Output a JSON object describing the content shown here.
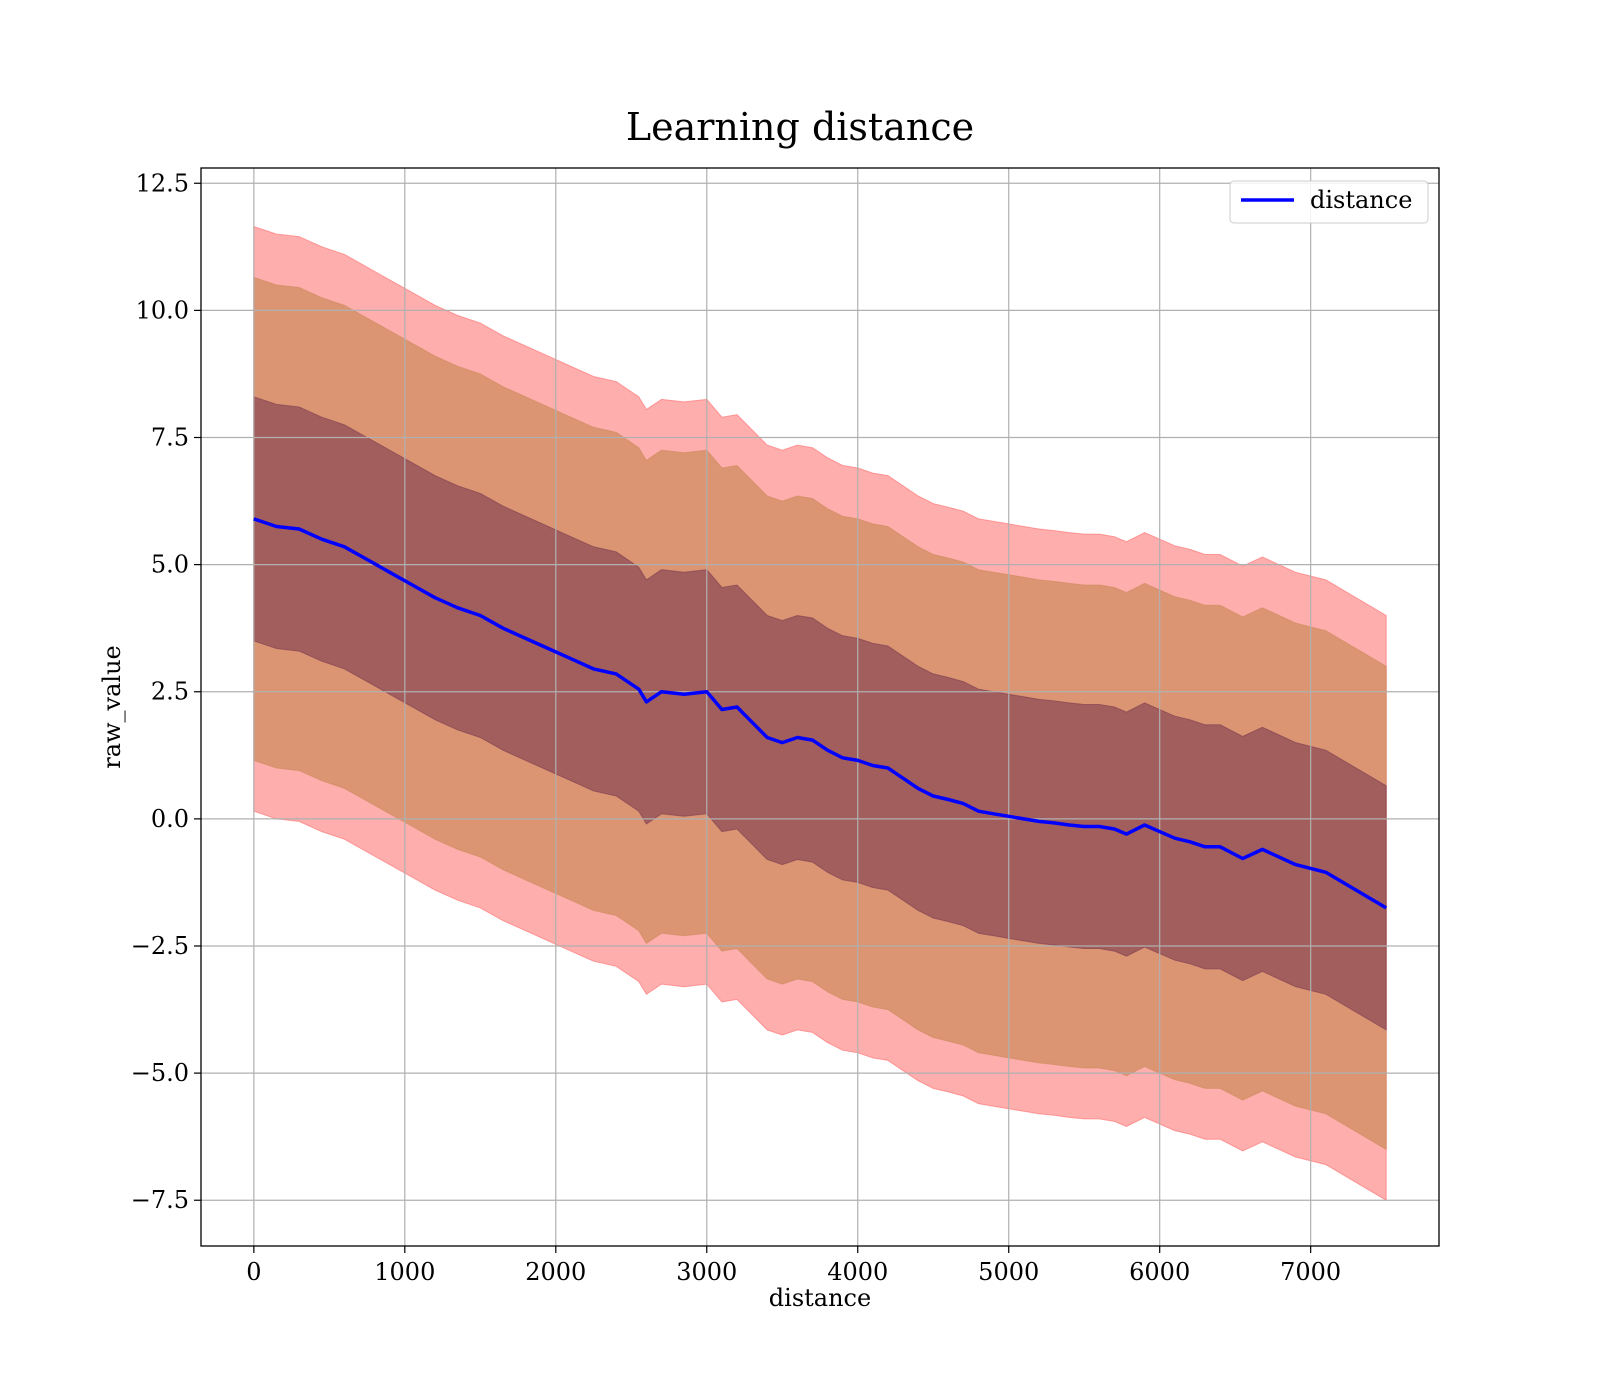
{
  "chart_data": {
    "type": "line",
    "title": "Learning distance",
    "xlabel": "distance",
    "ylabel": "raw_value",
    "xlim": [
      -350,
      7850
    ],
    "ylim": [
      -8.4,
      12.8
    ],
    "grid": true,
    "legend": {
      "placement": "top-right",
      "entries": [
        {
          "label": "distance",
          "color": "#0000ff"
        }
      ]
    },
    "x_ticks": [
      0,
      1000,
      2000,
      3000,
      4000,
      5000,
      6000,
      7000
    ],
    "x_tick_labels": [
      "0",
      "1000",
      "2000",
      "3000",
      "4000",
      "5000",
      "6000",
      "7000"
    ],
    "y_ticks": [
      12.5,
      10.0,
      7.5,
      5.0,
      2.5,
      0.0,
      -2.5,
      -5.0,
      -7.5
    ],
    "y_tick_labels": [
      "12.5",
      "10.0",
      "7.5",
      "5.0",
      "2.5",
      "0.0",
      "−2.5",
      "−5.0",
      "−7.5"
    ],
    "series": [
      {
        "name": "distance",
        "color": "#0000ff",
        "x": [
          0,
          150,
          300,
          450,
          600,
          750,
          900,
          1050,
          1200,
          1350,
          1500,
          1650,
          1800,
          1950,
          2100,
          2250,
          2400,
          2550,
          2600,
          2700,
          2850,
          3000,
          3100,
          3200,
          3300,
          3400,
          3500,
          3600,
          3700,
          3800,
          3900,
          4000,
          4100,
          4200,
          4300,
          4400,
          4500,
          4600,
          4700,
          4800,
          4900,
          5000,
          5100,
          5200,
          5300,
          5400,
          5500,
          5600,
          5700,
          5780,
          5900,
          6100,
          6200,
          6300,
          6400,
          6550,
          6680,
          6900,
          7100,
          7500
        ],
        "values": [
          5.9,
          5.75,
          5.7,
          5.5,
          5.35,
          5.1,
          4.85,
          4.6,
          4.35,
          4.15,
          4.0,
          3.75,
          3.55,
          3.35,
          3.15,
          2.95,
          2.85,
          2.55,
          2.3,
          2.5,
          2.45,
          2.5,
          2.15,
          2.2,
          1.9,
          1.6,
          1.5,
          1.6,
          1.55,
          1.35,
          1.2,
          1.15,
          1.05,
          1.0,
          0.8,
          0.6,
          0.45,
          0.38,
          0.3,
          0.15,
          0.1,
          0.05,
          0.0,
          -0.05,
          -0.08,
          -0.12,
          -0.15,
          -0.15,
          -0.2,
          -0.3,
          -0.12,
          -0.38,
          -0.45,
          -0.55,
          -0.55,
          -0.78,
          -0.6,
          -0.9,
          -1.05,
          -1.75
        ]
      }
    ],
    "bands": [
      {
        "name": "±2.4",
        "color": "#7b3a4e",
        "opacity": 0.6,
        "lower_offset": -2.4,
        "upper_offset": 2.4
      },
      {
        "name": "±4.75",
        "color": "#cc8a5a",
        "opacity": 0.7,
        "lower_offset": -4.75,
        "upper_offset": 4.75
      },
      {
        "name": "±5.75",
        "color": "#ff6b6b",
        "opacity": 0.55,
        "lower_offset": -5.75,
        "upper_offset": 5.75
      }
    ]
  }
}
